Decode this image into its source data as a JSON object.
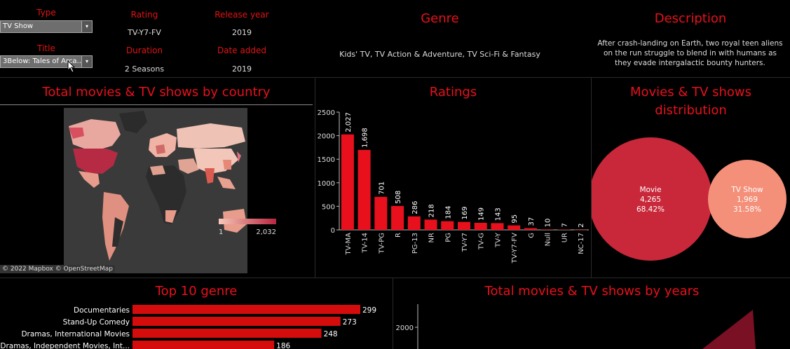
{
  "filters": {
    "type_label": "Type",
    "type_value": "TV Show",
    "title_label": "Title",
    "title_value": "3Below: Tales of Arca..."
  },
  "details": {
    "rating_label": "Rating",
    "rating_value": "TV-Y7-FV",
    "release_label": "Release year",
    "release_value": "2019",
    "duration_label": "Duration",
    "duration_value": "2 Seasons",
    "date_added_label": "Date added",
    "date_added_value": "2019"
  },
  "genre": {
    "title": "Genre",
    "value": "Kids' TV, TV Action & Adventure, TV Sci-Fi & Fantasy"
  },
  "description": {
    "title": "Description",
    "line1": "After crash-landing on Earth, two royal teen aliens",
    "line2": "on the run struggle to blend in with humans as",
    "line3": "they evade intergalactic bounty hunters."
  },
  "map": {
    "title": "Total movies & TV shows by country",
    "legend_min": "1",
    "legend_max": "2,032",
    "attribution": "© 2022 Mapbox © OpenStreetMap"
  },
  "ratings_chart": {
    "title": "Ratings"
  },
  "distribution": {
    "title_line1": "Movies & TV shows",
    "title_line2": "distribution",
    "movie_label": "Movie",
    "movie_count": "4,265",
    "movie_pct": "68.42%",
    "tv_label": "TV Show",
    "tv_count": "1,969",
    "tv_pct": "31.58%",
    "movie_color": "#c8283a",
    "tv_color": "#f4907a"
  },
  "top_genre": {
    "title": "Top 10 genre"
  },
  "years_chart": {
    "title": "Total movies & TV shows by years",
    "tick": "2000"
  },
  "chart_data": [
    {
      "type": "bar",
      "title": "Ratings",
      "categories": [
        "TV-MA",
        "TV-14",
        "TV-PG",
        "R",
        "PG-13",
        "NR",
        "PG",
        "TV-Y7",
        "TV-G",
        "TV-Y",
        "TV-Y7-FV",
        "G",
        "Null",
        "UR",
        "NC-17"
      ],
      "values": [
        2027,
        1698,
        701,
        508,
        286,
        218,
        184,
        169,
        149,
        143,
        95,
        37,
        10,
        7,
        2
      ],
      "value_labels": [
        "2,027",
        "1,698",
        "701",
        "508",
        "286",
        "218",
        "184",
        "169",
        "149",
        "143",
        "95",
        "37",
        "10",
        "7",
        "2"
      ],
      "yticks": [
        "0",
        "500",
        "1000",
        "1500",
        "2000",
        "2500"
      ],
      "ylim": [
        0,
        2500
      ],
      "color": "#e8101c"
    },
    {
      "type": "bar",
      "orientation": "horizontal",
      "title": "Top 10 genre",
      "categories": [
        "Documentaries",
        "Stand-Up Comedy",
        "Dramas, International Movies",
        "Dramas, Independent Movies, Int..."
      ],
      "values": [
        299,
        273,
        248,
        186
      ],
      "color": "#d40c0c"
    }
  ]
}
